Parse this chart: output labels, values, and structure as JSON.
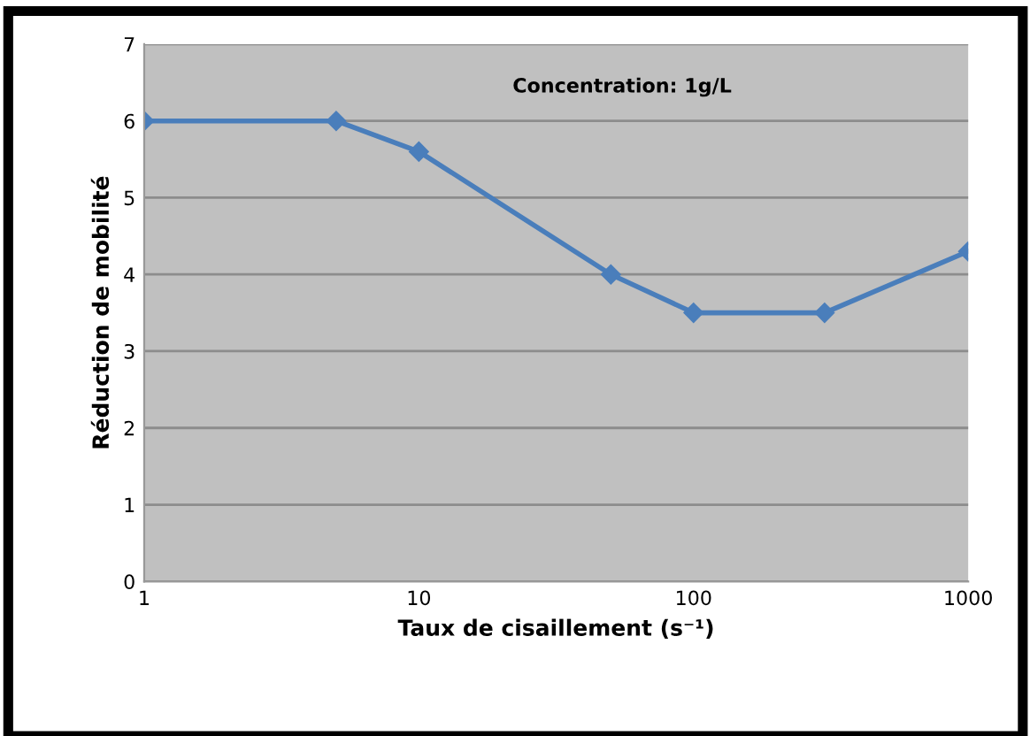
{
  "chart_data": {
    "type": "line",
    "xlabel": "Taux de cisaillement (s⁻¹)",
    "ylabel": "Réduction de mobilité",
    "annotations": [
      "Concentration: 1g/L"
    ],
    "x": [
      1,
      5,
      10,
      50,
      100,
      300,
      1000
    ],
    "series": [
      {
        "color": "#4a7ebb",
        "values": [
          6,
          6,
          5.6,
          4,
          3.5,
          3.5,
          4.3
        ]
      }
    ],
    "log": "x",
    "xlim": [
      1,
      1000
    ],
    "xticks": [
      1,
      10,
      100,
      1000
    ],
    "ylim": [
      0,
      7
    ],
    "yticks": [
      0,
      1,
      2,
      3,
      4,
      5,
      6,
      7
    ],
    "grid": "y",
    "marker": "diamond",
    "line_style": "solid"
  }
}
